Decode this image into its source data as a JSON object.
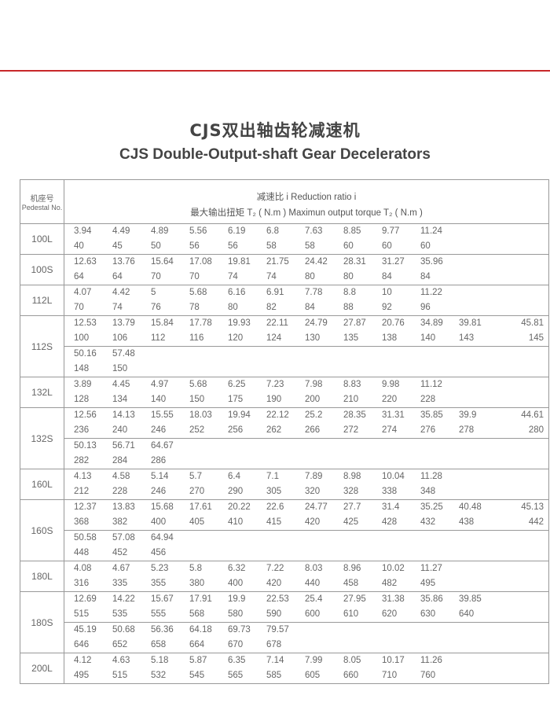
{
  "title_cn": "CJS双出轴齿轮减速机",
  "title_en": "CJS Double-Output-shaft Gear Decelerators",
  "colors": {
    "accent_line": "#c8282a"
  },
  "table": {
    "pedestal_header_cn": "机座号",
    "pedestal_header_en": "Pedestal No.",
    "header_line1": "减速比 i    Reduction ratio i",
    "header_line2": "最大输出扭矩  T₂ ( N.m )    Maximun output torque    T₂ ( N.m )",
    "rows": [
      {
        "pedestal": "100L",
        "groups": [
          {
            "ratio": [
              "3.94",
              "4.49",
              "4.89",
              "5.56",
              "6.19",
              "6.8",
              "7.63",
              "8.85",
              "9.77",
              "11.24"
            ],
            "torque": [
              "40",
              "45",
              "50",
              "56",
              "56",
              "58",
              "58",
              "60",
              "60",
              "60"
            ]
          }
        ]
      },
      {
        "pedestal": "100S",
        "groups": [
          {
            "ratio": [
              "12.63",
              "13.76",
              "15.64",
              "17.08",
              "19.81",
              "21.75",
              "24.42",
              "28.31",
              "31.27",
              "35.96"
            ],
            "torque": [
              "64",
              "64",
              "70",
              "70",
              "74",
              "74",
              "80",
              "80",
              "84",
              "84"
            ]
          }
        ]
      },
      {
        "pedestal": "112L",
        "groups": [
          {
            "ratio": [
              "4.07",
              "4.42",
              "5",
              "5.68",
              "6.16",
              "6.91",
              "7.78",
              "8.8",
              "10",
              "11.22"
            ],
            "torque": [
              "70",
              "74",
              "76",
              "78",
              "80",
              "82",
              "84",
              "88",
              "92",
              "96"
            ]
          }
        ]
      },
      {
        "pedestal": "112S",
        "groups": [
          {
            "ratio": [
              "12.53",
              "13.79",
              "15.84",
              "17.78",
              "19.93",
              "22.11",
              "24.79",
              "27.87",
              "20.76",
              "34.89",
              "39.81",
              "45.81"
            ],
            "torque": [
              "100",
              "106",
              "112",
              "116",
              "120",
              "124",
              "130",
              "135",
              "138",
              "140",
              "143",
              "145"
            ]
          },
          {
            "ratio": [
              "50.16",
              "57.48"
            ],
            "torque": [
              "148",
              "150"
            ]
          }
        ]
      },
      {
        "pedestal": "132L",
        "groups": [
          {
            "ratio": [
              "3.89",
              "4.45",
              "4.97",
              "5.68",
              "6.25",
              "7.23",
              "7.98",
              "8.83",
              "9.98",
              "11.12"
            ],
            "torque": [
              "128",
              "134",
              "140",
              "150",
              "175",
              "190",
              "200",
              "210",
              "220",
              "228"
            ]
          }
        ]
      },
      {
        "pedestal": "132S",
        "groups": [
          {
            "ratio": [
              "12.56",
              "14.13",
              "15.55",
              "18.03",
              "19.94",
              "22.12",
              "25.2",
              "28.35",
              "31.31",
              "35.85",
              "39.9",
              "44.61"
            ],
            "torque": [
              "236",
              "240",
              "246",
              "252",
              "256",
              "262",
              "266",
              "272",
              "274",
              "276",
              "278",
              "280"
            ]
          },
          {
            "ratio": [
              "50.13",
              "56.71",
              "64.67"
            ],
            "torque": [
              "282",
              "284",
              "286"
            ]
          }
        ]
      },
      {
        "pedestal": "160L",
        "groups": [
          {
            "ratio": [
              "4.13",
              "4.58",
              "5.14",
              "5.7",
              "6.4",
              "7.1",
              "7.89",
              "8.98",
              "10.04",
              "11.28"
            ],
            "torque": [
              "212",
              "228",
              "246",
              "270",
              "290",
              "305",
              "320",
              "328",
              "338",
              "348"
            ]
          }
        ]
      },
      {
        "pedestal": "160S",
        "groups": [
          {
            "ratio": [
              "12.37",
              "13.83",
              "15.68",
              "17.61",
              "20.22",
              "22.6",
              "24.77",
              "27.7",
              "31.4",
              "35.25",
              "40.48",
              "45.13"
            ],
            "torque": [
              "368",
              "382",
              "400",
              "405",
              "410",
              "415",
              "420",
              "425",
              "428",
              "432",
              "438",
              "442"
            ]
          },
          {
            "ratio": [
              "50.58",
              "57.08",
              "64.94"
            ],
            "torque": [
              "448",
              "452",
              "456"
            ]
          }
        ]
      },
      {
        "pedestal": "180L",
        "groups": [
          {
            "ratio": [
              "4.08",
              "4.67",
              "5.23",
              "5.8",
              "6.32",
              "7.22",
              "8.03",
              "8.96",
              "10.02",
              "11.27"
            ],
            "torque": [
              "316",
              "335",
              "355",
              "380",
              "400",
              "420",
              "440",
              "458",
              "482",
              "495"
            ]
          }
        ]
      },
      {
        "pedestal": "180S",
        "groups": [
          {
            "ratio": [
              "12.69",
              "14.22",
              "15.67",
              "17.91",
              "19.9",
              "22.53",
              "25.4",
              "27.95",
              "31.38",
              "35.86",
              "39.85"
            ],
            "torque": [
              "515",
              "535",
              "555",
              "568",
              "580",
              "590",
              "600",
              "610",
              "620",
              "630",
              "640"
            ]
          },
          {
            "ratio": [
              "45.19",
              "50.68",
              "56.36",
              "64.18",
              "69.73",
              "79.57"
            ],
            "torque": [
              "646",
              "652",
              "658",
              "664",
              "670",
              "678"
            ]
          }
        ]
      },
      {
        "pedestal": "200L",
        "groups": [
          {
            "ratio": [
              "4.12",
              "4.63",
              "5.18",
              "5.87",
              "6.35",
              "7.14",
              "7.99",
              "8.05",
              "10.17",
              "11.26"
            ],
            "torque": [
              "495",
              "515",
              "532",
              "545",
              "565",
              "585",
              "605",
              "660",
              "710",
              "760"
            ]
          }
        ]
      }
    ]
  }
}
